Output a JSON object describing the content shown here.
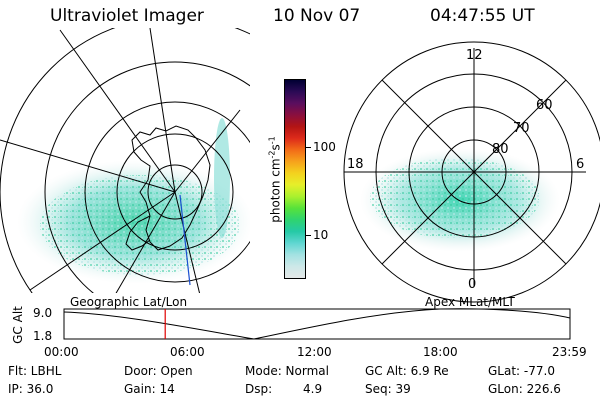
{
  "header": {
    "instrument": "Ultraviolet Imager",
    "date": "10 Nov 07",
    "time": "04:47:55 UT"
  },
  "colorbar": {
    "units_label": "photon cm",
    "units_sup1": "-2",
    "units_mid": "s",
    "units_sup2": "-1",
    "ticks": [
      "100",
      "10"
    ],
    "colors": [
      "#000033",
      "#2a0a55",
      "#5a0e5e",
      "#8a0f3e",
      "#b31414",
      "#dd2a1a",
      "#f26b18",
      "#f6a21c",
      "#f4d21e",
      "#e6ef2a",
      "#aaf02e",
      "#57e23a",
      "#2fd46f",
      "#25c9a6",
      "#5fd6d1",
      "#a3e2e2",
      "#cde8e8",
      "#e4e8e8"
    ]
  },
  "right_panel": {
    "label_top": "12",
    "label_left": "18",
    "label_right": "6",
    "label_bottom": "0",
    "lat_labels": [
      "60",
      "70",
      "80"
    ]
  },
  "timeline": {
    "left_label": "Geographic Lat/Lon",
    "right_label": "Apex MLat/MLT",
    "ylabel": "GC Alt",
    "y_top": "9.0",
    "y_bottom": "1.8",
    "x_ticks": [
      "00:00",
      "06:00",
      "12:00",
      "18:00",
      "23:59"
    ],
    "marker_time_hours": 4.8,
    "marker_color": "#e00000"
  },
  "info": {
    "flt": "Flt: LBHL",
    "ip": "IP: 36.0",
    "door": "Door: Open",
    "gain": "Gain: 14",
    "mode": "Mode: Normal",
    "dsp_label": "Dsp:",
    "dsp_value": "4.9",
    "gc_alt": "GC Alt: 6.9 Re",
    "seq": "Seq: 39",
    "glat": "GLat: -77.0",
    "glon": "GLon: 226.6"
  }
}
